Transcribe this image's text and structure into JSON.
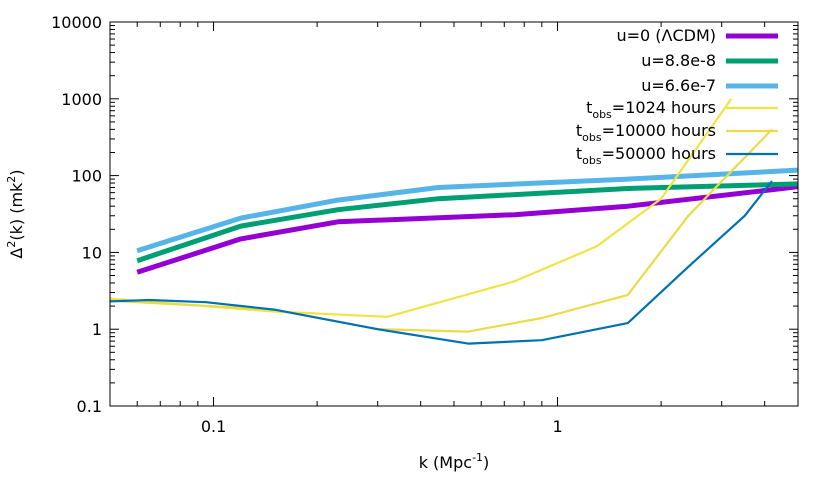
{
  "chart_data": {
    "type": "line",
    "title": "",
    "xlabel": {
      "base": "k (Mpc",
      "sup": "-1",
      "tail": ")"
    },
    "ylabel": {
      "base": "Δ",
      "sup": "2",
      "mid": "(k) (mk",
      "sup2": "2",
      "tail": ")"
    },
    "xscale": "log",
    "yscale": "log",
    "xlim": [
      0.05,
      5.0
    ],
    "ylim": [
      0.1,
      10000
    ],
    "xticks": [
      {
        "value": 0.1,
        "label": "0.1"
      },
      {
        "value": 1,
        "label": "1"
      }
    ],
    "yticks": [
      {
        "value": 0.1,
        "label": "0.1"
      },
      {
        "value": 1,
        "label": "1"
      },
      {
        "value": 10,
        "label": "10"
      },
      {
        "value": 100,
        "label": "100"
      },
      {
        "value": 1000,
        "label": "1000"
      },
      {
        "value": 10000,
        "label": "10000"
      }
    ],
    "legend_position": "top-right",
    "series": [
      {
        "name": "u=0 (ΛCDM)",
        "label_main": "u=0 (ΛCDM)",
        "color": "#9400d3",
        "thick": true,
        "x": [
          0.06,
          0.12,
          0.23,
          0.75,
          1.6,
          4.5,
          5.0
        ],
        "y": [
          5.5,
          15,
          25,
          31,
          40,
          68,
          72
        ]
      },
      {
        "name": "u=8.8e-8",
        "label_main": "u=8.8e-8",
        "color": "#009e73",
        "thick": true,
        "x": [
          0.06,
          0.12,
          0.23,
          0.45,
          1.6,
          5.0
        ],
        "y": [
          7.8,
          22,
          36,
          50,
          68,
          78
        ]
      },
      {
        "name": "u=6.6e-7",
        "label_main": "u=6.6e-7",
        "color": "#56b4e9",
        "thick": true,
        "x": [
          0.06,
          0.12,
          0.23,
          0.45,
          1.6,
          5.0
        ],
        "y": [
          10.5,
          28,
          48,
          70,
          90,
          118
        ]
      },
      {
        "name": "tobs=1024 hours",
        "label_main": "t",
        "label_sub": "obs",
        "label_tail": "=1024 hours",
        "color": "#f0e442",
        "thick": false,
        "x": [
          0.05,
          0.15,
          0.32,
          0.75,
          1.3,
          2.0,
          3.2
        ],
        "y": [
          2.5,
          1.7,
          1.45,
          4.2,
          12,
          50,
          1000
        ]
      },
      {
        "name": "tobs=10000 hours",
        "label_main": "t",
        "label_sub": "obs",
        "label_tail": "=10000 hours",
        "color": "#eadb47",
        "thick": false,
        "x": [
          0.05,
          0.15,
          0.3,
          0.55,
          0.9,
          1.6,
          2.4,
          4.2
        ],
        "y": [
          2.35,
          1.8,
          1.0,
          0.93,
          1.4,
          2.8,
          30,
          400
        ]
      },
      {
        "name": "tobs=50000 hours",
        "label_main": "t",
        "label_sub": "obs",
        "label_tail": "=50000 hours",
        "color": "#0072b2",
        "thick": false,
        "x": [
          0.05,
          0.065,
          0.095,
          0.15,
          0.3,
          0.55,
          0.9,
          1.6,
          2.4,
          3.5,
          4.2
        ],
        "y": [
          2.3,
          2.4,
          2.25,
          1.8,
          1.0,
          0.65,
          0.72,
          1.2,
          6.5,
          30,
          85
        ]
      }
    ]
  }
}
